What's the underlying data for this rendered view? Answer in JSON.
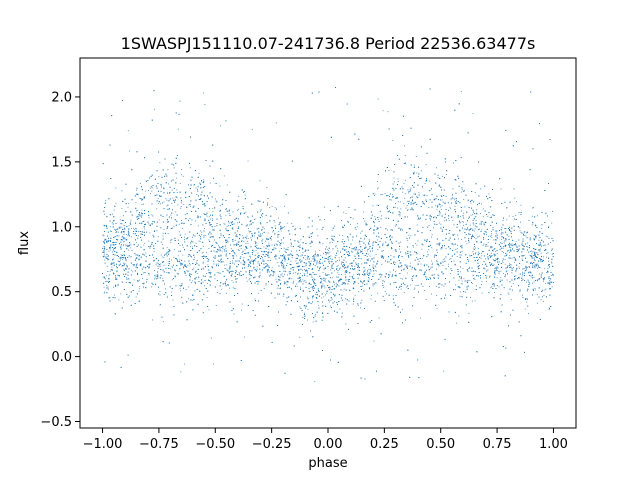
{
  "chart_data": {
    "type": "scatter",
    "title": "1SWASPJ151110.07-241736.8 Period 22536.63477s",
    "xlabel": "phase",
    "ylabel": "flux",
    "xlim": [
      -1.1,
      1.1
    ],
    "ylim": [
      -0.55,
      2.3
    ],
    "x_ticks": [
      -1.0,
      -0.75,
      -0.5,
      -0.25,
      0.0,
      0.25,
      0.5,
      0.75,
      1.0
    ],
    "x_tick_labels": [
      "−1.00",
      "−0.75",
      "−0.50",
      "−0.25",
      "0.00",
      "0.25",
      "0.50",
      "0.75",
      "1.00"
    ],
    "y_ticks": [
      -0.5,
      0.0,
      0.5,
      1.0,
      1.5,
      2.0
    ],
    "y_tick_labels": [
      "−0.5",
      "0.0",
      "0.5",
      "1.0",
      "1.5",
      "2.0"
    ],
    "grid": false,
    "point_color": "#1f77b4",
    "series": [
      {
        "x_range": [
          -1.0,
          1.0
        ],
        "profile": {
          "phase": [
            -1.0,
            -0.9,
            -0.8,
            -0.7,
            -0.6,
            -0.5,
            -0.4,
            -0.3,
            -0.2,
            -0.1,
            0.0,
            0.1,
            0.2,
            0.3,
            0.4,
            0.5,
            0.6,
            0.7,
            0.8,
            0.9,
            1.0
          ],
          "bright_branch_flux": [
            0.85,
            0.95,
            1.15,
            1.25,
            1.2,
            1.05,
            0.95,
            0.9,
            0.8,
            0.7,
            0.65,
            0.75,
            0.95,
            1.2,
            1.25,
            1.15,
            1.05,
            0.95,
            0.85,
            0.8,
            0.75
          ],
          "faint_branch_flux": [
            0.7,
            0.72,
            0.73,
            0.7,
            0.68,
            0.7,
            0.72,
            0.7,
            0.68,
            0.62,
            0.6,
            0.62,
            0.68,
            0.72,
            0.73,
            0.7,
            0.68,
            0.7,
            0.72,
            0.7,
            0.7
          ]
        },
        "y_range_visible": [
          -0.4,
          2.2
        ]
      }
    ]
  }
}
